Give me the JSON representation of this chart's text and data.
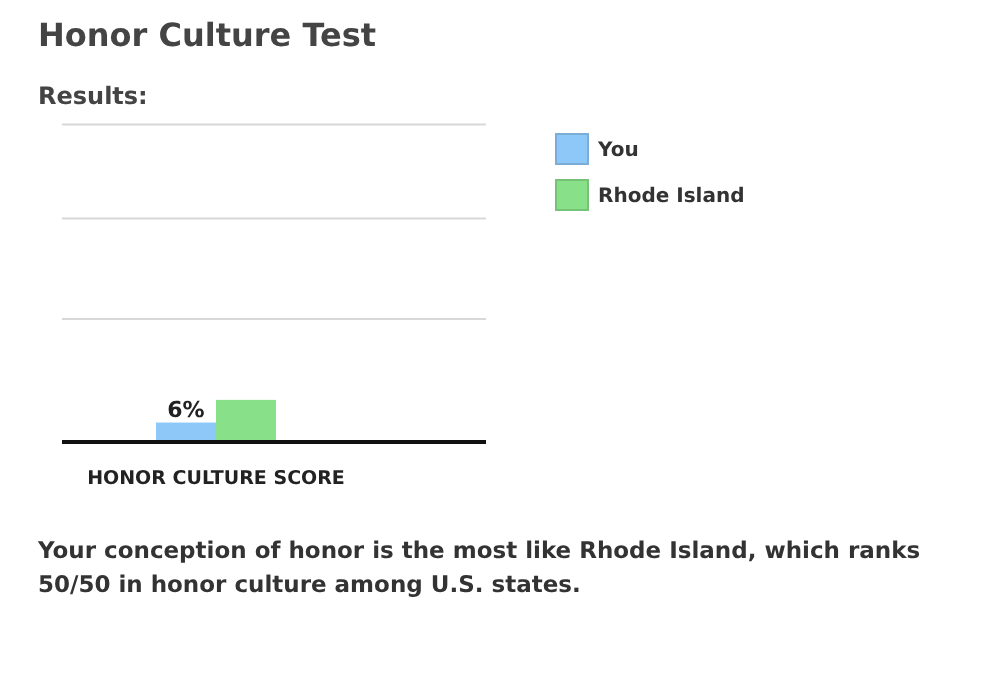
{
  "chart_data": {
    "type": "bar",
    "title": "Honor Culture Test",
    "subtitle": "Results:",
    "categories": [
      "HONOR CULTURE SCORE"
    ],
    "series": [
      {
        "name": "You",
        "color": "#8ec8f8",
        "values": [
          6
        ],
        "value_labels": [
          "6%"
        ]
      },
      {
        "name": "Rhode Island",
        "color": "#88e088",
        "values": [
          13
        ]
      }
    ],
    "ylim": [
      0,
      100
    ],
    "yticks": [
      {
        "value": 38,
        "label": null
      },
      {
        "value": 69,
        "label": null
      },
      {
        "value": 98,
        "label": null
      }
    ],
    "tick_labels": "x",
    "grid": "y",
    "legend": "top right",
    "annotations": [
      "Your conception of honor is the most like Rhode Island, which ranks 50/50 in honor culture among U.S. states."
    ]
  }
}
